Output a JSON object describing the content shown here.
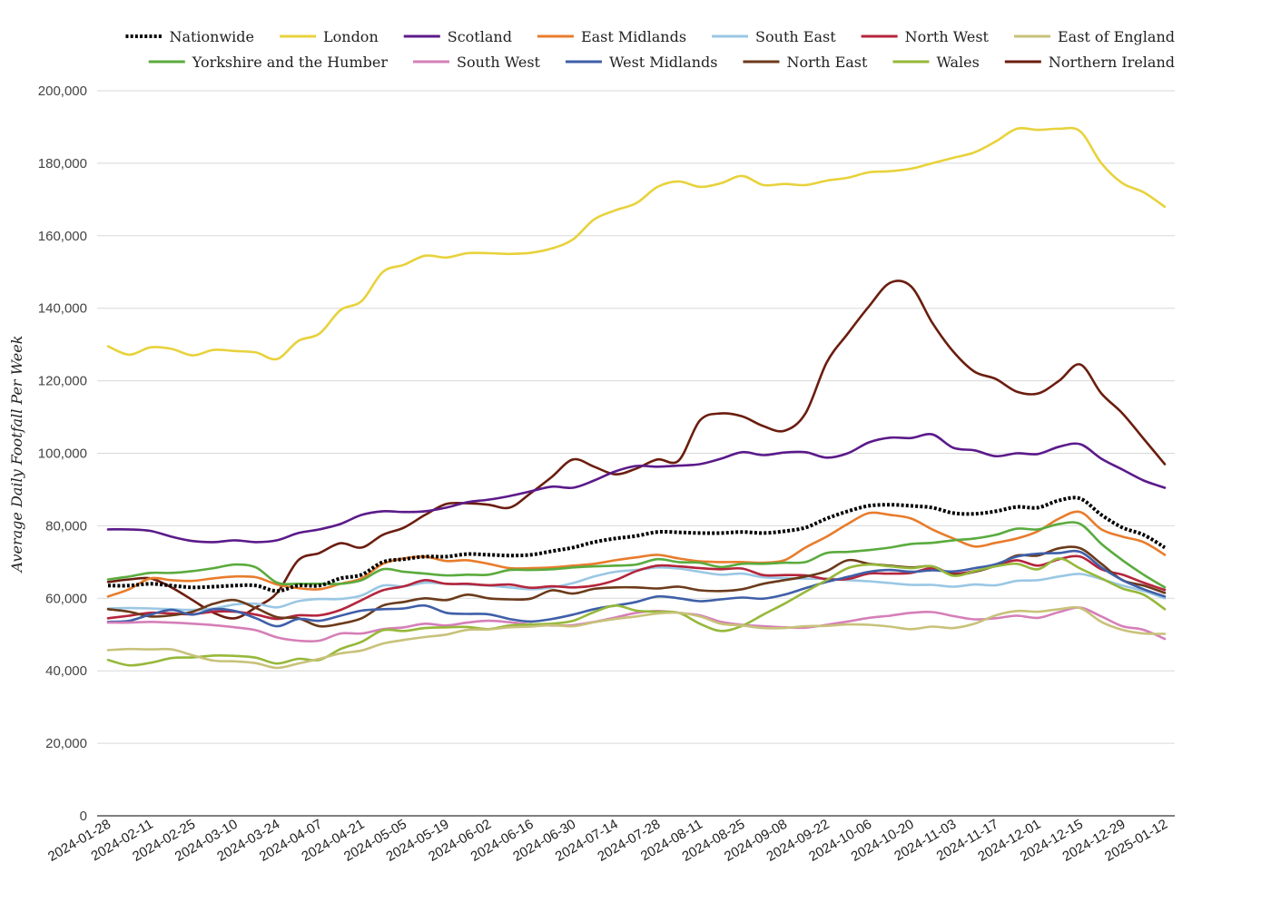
{
  "chart_data": {
    "type": "line",
    "title": "",
    "xlabel": "",
    "ylabel": "Average Daily Footfall Per Week",
    "ylim": [
      0,
      200000
    ],
    "y_ticks": [
      0,
      20000,
      40000,
      60000,
      80000,
      100000,
      120000,
      140000,
      160000,
      180000,
      200000
    ],
    "y_tick_labels": [
      "0",
      "20,000",
      "40,000",
      "60,000",
      "80,000",
      "100,000",
      "120,000",
      "140,000",
      "160,000",
      "180,000",
      "200,000"
    ],
    "x_tick_labels": [
      "2024-01-28",
      "2024-02-11",
      "2024-02-25",
      "2024-03-10",
      "2024-03-24",
      "2024-04-07",
      "2024-04-21",
      "2024-05-05",
      "2024-05-19",
      "2024-06-02",
      "2024-06-16",
      "2024-06-30",
      "2024-07-14",
      "2024-07-28",
      "2024-08-11",
      "2024-08-25",
      "2024-09-08",
      "2024-09-22",
      "2024-10-06",
      "2024-10-20",
      "2024-11-03",
      "2024-11-17",
      "2024-12-01",
      "2024-12-15",
      "2024-12-29",
      "2025-01-12"
    ],
    "x": [
      "2024-01-28",
      "2024-02-04",
      "2024-02-11",
      "2024-02-18",
      "2024-02-25",
      "2024-03-03",
      "2024-03-10",
      "2024-03-17",
      "2024-03-24",
      "2024-03-31",
      "2024-04-07",
      "2024-04-14",
      "2024-04-21",
      "2024-04-28",
      "2024-05-05",
      "2024-05-12",
      "2024-05-19",
      "2024-05-26",
      "2024-06-02",
      "2024-06-09",
      "2024-06-16",
      "2024-06-23",
      "2024-06-30",
      "2024-07-07",
      "2024-07-14",
      "2024-07-21",
      "2024-07-28",
      "2024-08-04",
      "2024-08-11",
      "2024-08-18",
      "2024-08-25",
      "2024-09-01",
      "2024-09-08",
      "2024-09-15",
      "2024-09-22",
      "2024-09-29",
      "2024-10-06",
      "2024-10-13",
      "2024-10-20",
      "2024-10-27",
      "2024-11-03",
      "2024-11-10",
      "2024-11-17",
      "2024-11-24",
      "2024-12-01",
      "2024-12-08",
      "2024-12-15",
      "2024-12-22",
      "2024-12-29",
      "2025-01-05",
      "2025-01-12"
    ],
    "grid": true,
    "legend_position": "top",
    "series": [
      {
        "name": "London",
        "color": "#e8d23c",
        "dashed": false,
        "values": [
          129500,
          127200,
          129200,
          128800,
          127000,
          128500,
          128200,
          127800,
          126000,
          131000,
          133000,
          139500,
          142000,
          150000,
          152000,
          154500,
          154000,
          155200,
          155200,
          155000,
          155300,
          156500,
          159000,
          164500,
          167000,
          169000,
          173500,
          175000,
          173500,
          174500,
          176500,
          174000,
          174300,
          174000,
          175200,
          176000,
          177500,
          177800,
          178500,
          180000,
          181500,
          183000,
          186000,
          189500,
          189200,
          189500,
          188800,
          180000,
          174500,
          172000,
          168000
        ]
      },
      {
        "name": "Northern Ireland",
        "color": "#6b1d0f",
        "dashed": false,
        "values": [
          64500,
          65200,
          65500,
          63000,
          59500,
          56000,
          54500,
          57500,
          61500,
          70500,
          72500,
          75200,
          74000,
          77500,
          79500,
          83000,
          86000,
          86200,
          85800,
          85000,
          89000,
          93500,
          98300,
          96300,
          94200,
          95800,
          98300,
          98000,
          109000,
          111000,
          110200,
          107500,
          106200,
          111000,
          125000,
          133000,
          140500,
          147000,
          146000,
          136000,
          128000,
          122500,
          120500,
          117000,
          116500,
          120000,
          124500,
          116500,
          111000,
          104000,
          97000
        ]
      },
      {
        "name": "Scotland",
        "color": "#5b1a8a",
        "dashed": false,
        "values": [
          79000,
          79000,
          78600,
          77000,
          75800,
          75500,
          76000,
          75500,
          76000,
          78000,
          79000,
          80500,
          83000,
          84000,
          83800,
          84000,
          85000,
          86500,
          87200,
          88200,
          89500,
          90800,
          90500,
          92500,
          95000,
          96500,
          96300,
          96600,
          97000,
          98500,
          100300,
          99500,
          100200,
          100300,
          98800,
          100000,
          103000,
          104300,
          104200,
          105200,
          101500,
          100800,
          99200,
          100000,
          99800,
          101800,
          102500,
          98500,
          95500,
          92500,
          90500
        ]
      },
      {
        "name": "Nationwide",
        "color": "#000000",
        "dashed": true,
        "values": [
          63500,
          63500,
          64000,
          63500,
          63000,
          63200,
          63500,
          63500,
          62000,
          63500,
          63500,
          65500,
          66500,
          70000,
          70800,
          71500,
          71500,
          72200,
          72000,
          71800,
          72000,
          73000,
          74000,
          75500,
          76500,
          77200,
          78300,
          78200,
          78000,
          78000,
          78300,
          78000,
          78500,
          79500,
          82000,
          84000,
          85500,
          85800,
          85500,
          85000,
          83500,
          83300,
          84000,
          85200,
          85000,
          87000,
          87500,
          83000,
          79500,
          77500,
          74000
        ]
      },
      {
        "name": "East Midlands",
        "color": "#e87c2c",
        "dashed": false,
        "values": [
          60500,
          62500,
          65500,
          65000,
          64800,
          65500,
          66000,
          65800,
          63800,
          62800,
          62500,
          64000,
          65500,
          69500,
          71000,
          71500,
          70300,
          70500,
          69500,
          68300,
          68300,
          68500,
          69000,
          69500,
          70500,
          71300,
          72000,
          71000,
          70200,
          70000,
          70000,
          69800,
          70500,
          74000,
          77000,
          80500,
          83500,
          83000,
          82000,
          79000,
          76500,
          74300,
          75300,
          76500,
          78500,
          82000,
          83800,
          79000,
          77000,
          75500,
          72000
        ]
      },
      {
        "name": "Yorkshire and the Humber",
        "color": "#5aab3e",
        "dashed": false,
        "values": [
          65200,
          66000,
          67000,
          67000,
          67500,
          68300,
          69300,
          68500,
          64300,
          64000,
          64000,
          64000,
          65000,
          68000,
          67300,
          66800,
          66300,
          66500,
          66500,
          67800,
          67800,
          68000,
          68500,
          68800,
          69000,
          69300,
          70800,
          70000,
          69800,
          68600,
          69500,
          69500,
          69800,
          70000,
          72500,
          72800,
          73300,
          74000,
          75000,
          75300,
          76000,
          76500,
          77500,
          79200,
          79000,
          80500,
          80500,
          75000,
          70500,
          66500,
          63000
        ]
      },
      {
        "name": "South East",
        "color": "#9ac7e4",
        "dashed": false,
        "values": [
          57200,
          57300,
          57200,
          57000,
          56800,
          57200,
          58300,
          58500,
          57500,
          59200,
          59800,
          59800,
          60800,
          63500,
          63300,
          64300,
          64000,
          63800,
          63500,
          63000,
          62500,
          63000,
          64200,
          66000,
          67300,
          67800,
          68500,
          68200,
          67300,
          66500,
          66800,
          65800,
          65600,
          65400,
          65400,
          65000,
          64700,
          64200,
          63700,
          63700,
          63200,
          63800,
          63600,
          64800,
          65000,
          66000,
          66700,
          65300,
          63500,
          62000,
          60000
        ]
      },
      {
        "name": "North West",
        "color": "#b5253c",
        "dashed": false,
        "values": [
          54500,
          55200,
          56000,
          55800,
          55600,
          56300,
          56300,
          55500,
          54300,
          55300,
          55300,
          56800,
          59500,
          62200,
          63300,
          65000,
          64000,
          64000,
          63600,
          63800,
          62900,
          63300,
          63000,
          63500,
          65000,
          67500,
          69000,
          68800,
          68300,
          68000,
          68200,
          66400,
          66400,
          66300,
          65300,
          65300,
          66800,
          66800,
          67000,
          68300,
          66800,
          67500,
          69000,
          70500,
          69000,
          70800,
          71500,
          68000,
          66500,
          64300,
          62300
        ]
      },
      {
        "name": "North East",
        "color": "#6b3a1a",
        "dashed": false,
        "values": [
          57000,
          56300,
          55000,
          55300,
          56300,
          58500,
          59500,
          57300,
          54800,
          54500,
          52300,
          53000,
          54500,
          58000,
          59000,
          60000,
          59500,
          61000,
          60000,
          59700,
          59900,
          62200,
          61300,
          62600,
          63000,
          63000,
          62700,
          63200,
          62200,
          62000,
          62500,
          64000,
          65000,
          66000,
          67500,
          70500,
          69500,
          69000,
          68500,
          68800,
          66500,
          67300,
          69000,
          71800,
          71800,
          73800,
          73800,
          69500,
          65000,
          63500,
          61500
        ]
      },
      {
        "name": "West Midlands",
        "color": "#3f5fa8",
        "dashed": false,
        "values": [
          53500,
          53800,
          55500,
          56800,
          55500,
          57000,
          56500,
          54500,
          52300,
          54300,
          53800,
          55200,
          56600,
          57000,
          57200,
          58000,
          56000,
          55700,
          55600,
          54300,
          53600,
          54300,
          55500,
          57000,
          58000,
          59000,
          60500,
          60000,
          59200,
          59700,
          60200,
          59900,
          61000,
          62800,
          64500,
          65900,
          67300,
          67800,
          67300,
          67700,
          67400,
          68300,
          69400,
          71500,
          72300,
          72500,
          72800,
          68500,
          65000,
          62500,
          60500
        ]
      },
      {
        "name": "South West",
        "color": "#d57fb8",
        "dashed": false,
        "values": [
          53300,
          53300,
          53500,
          53300,
          53000,
          52600,
          52000,
          51200,
          49200,
          48300,
          48300,
          50300,
          50300,
          51500,
          52000,
          53000,
          52500,
          53300,
          53800,
          53400,
          52800,
          52500,
          52600,
          53500,
          54700,
          56000,
          56500,
          56000,
          55300,
          53500,
          52700,
          52300,
          52000,
          51900,
          52700,
          53600,
          54600,
          55200,
          56000,
          56200,
          55100,
          54200,
          54500,
          55200,
          54600,
          56200,
          57400,
          55000,
          52300,
          51300,
          48800
        ]
      },
      {
        "name": "Wales",
        "color": "#96b83a",
        "dashed": false,
        "values": [
          43000,
          41500,
          42200,
          43500,
          43700,
          44200,
          44100,
          43600,
          42000,
          43300,
          43000,
          46000,
          48000,
          51200,
          51000,
          51800,
          52000,
          52100,
          51500,
          52500,
          52800,
          53000,
          53800,
          56200,
          58000,
          56600,
          56300,
          56000,
          53000,
          51000,
          52400,
          55500,
          58500,
          61800,
          65000,
          68300,
          69300,
          68800,
          68300,
          68800,
          66200,
          67500,
          68800,
          69500,
          68000,
          71000,
          68200,
          65500,
          62700,
          61000,
          57000
        ]
      },
      {
        "name": "East of England",
        "color": "#c8c27a",
        "dashed": false,
        "values": [
          45700,
          46000,
          45900,
          45900,
          44300,
          42800,
          42600,
          42100,
          40800,
          42000,
          43300,
          44800,
          45600,
          47500,
          48500,
          49300,
          50000,
          51300,
          51400,
          52000,
          52200,
          52600,
          52300,
          53400,
          54300,
          55000,
          55800,
          56000,
          55000,
          53000,
          52500,
          51800,
          51800,
          52300,
          52400,
          52800,
          52700,
          52200,
          51500,
          52200,
          51800,
          53000,
          55300,
          56500,
          56300,
          57000,
          57300,
          53500,
          51300,
          50300,
          50200
        ]
      }
    ]
  },
  "legend": [
    {
      "name": "Nationwide",
      "color": "#000000",
      "dashed": true
    },
    {
      "name": "London",
      "color": "#e8d23c",
      "dashed": false
    },
    {
      "name": "Scotland",
      "color": "#5b1a8a",
      "dashed": false
    },
    {
      "name": "East Midlands",
      "color": "#e87c2c",
      "dashed": false
    },
    {
      "name": "South East",
      "color": "#9ac7e4",
      "dashed": false
    },
    {
      "name": "North West",
      "color": "#b5253c",
      "dashed": false
    },
    {
      "name": "East of England",
      "color": "#c8c27a",
      "dashed": false
    },
    {
      "name": "Yorkshire and the Humber",
      "color": "#5aab3e",
      "dashed": false
    },
    {
      "name": "South West",
      "color": "#d57fb8",
      "dashed": false
    },
    {
      "name": "West Midlands",
      "color": "#3f5fa8",
      "dashed": false
    },
    {
      "name": "North East",
      "color": "#6b3a1a",
      "dashed": false
    },
    {
      "name": "Wales",
      "color": "#96b83a",
      "dashed": false
    },
    {
      "name": "Northern Ireland",
      "color": "#6b1d0f",
      "dashed": false
    }
  ]
}
